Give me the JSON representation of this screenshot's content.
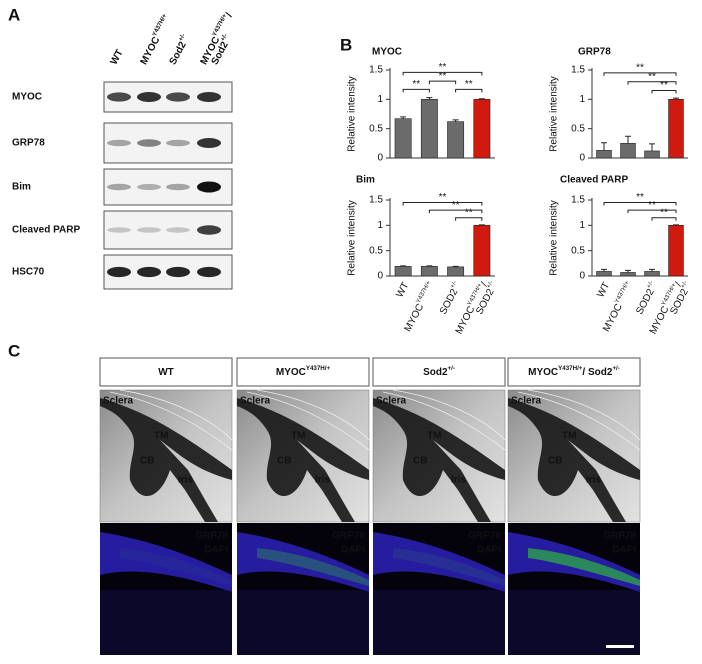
{
  "panel_labels": [
    "A",
    "B",
    "C"
  ],
  "blot": {
    "columns": [
      [
        [
          "WT"
        ]
      ],
      [
        [
          "MYOC",
          "Y437H/+"
        ]
      ],
      [
        [
          "Sod2",
          "+/-"
        ]
      ],
      [
        [
          "MYOC",
          "Y437H/+",
          "/"
        ],
        [
          "Sod2",
          "+/-"
        ]
      ]
    ],
    "rows": [
      "MYOC",
      "GRP78",
      "Bim",
      "Cleaved PARP",
      "HSC70"
    ]
  },
  "chart_data": [
    {
      "type": "bar",
      "title": "MYOC",
      "y_label": "Relative intensity",
      "categories": [
        null,
        null,
        null,
        null
      ],
      "values": [
        0.67,
        1.0,
        0.62,
        1.0
      ],
      "errors": [
        0.03,
        0.03,
        0.03,
        0.01
      ],
      "colors": [
        "#6b6b6b",
        "#6b6b6b",
        "#6b6b6b",
        "#d0190f"
      ],
      "annotations": [
        "**",
        "**",
        "**",
        "**"
      ],
      "ylim": [
        0,
        1.5
      ],
      "yticks": [
        0,
        0.5,
        1,
        1.5
      ]
    },
    {
      "type": "bar",
      "title": "GRP78",
      "y_label": "Relative intensity",
      "categories": [
        null,
        null,
        null,
        null
      ],
      "values": [
        0.13,
        0.25,
        0.12,
        1.0
      ],
      "errors": [
        0.13,
        0.12,
        0.12,
        0.02
      ],
      "colors": [
        "#6b6b6b",
        "#6b6b6b",
        "#6b6b6b",
        "#d0190f"
      ],
      "annotations": [
        "**",
        "**",
        "**"
      ],
      "ylim": [
        0,
        1.5
      ],
      "yticks": [
        0,
        0.5,
        1,
        1.5
      ]
    },
    {
      "type": "bar",
      "title": "Bim",
      "y_label": "Relative intensity",
      "categories": [
        [
          [
            "WT"
          ]
        ],
        [
          [
            "MYOC",
            "Y437H/+"
          ]
        ],
        [
          [
            "SOD2",
            "+/-"
          ]
        ],
        [
          [
            "MYOC",
            "Y437H/+",
            "/"
          ],
          [
            "SOD2",
            "+/-"
          ]
        ]
      ],
      "values": [
        0.19,
        0.19,
        0.18,
        1.0
      ],
      "errors": [
        0.01,
        0.01,
        0.01,
        0.01
      ],
      "colors": [
        "#6b6b6b",
        "#6b6b6b",
        "#6b6b6b",
        "#d0190f"
      ],
      "annotations": [
        "**",
        "**",
        "**"
      ],
      "ylim": [
        0,
        1.5
      ],
      "yticks": [
        0,
        0.5,
        1,
        1.5
      ]
    },
    {
      "type": "bar",
      "title": "Cleaved PARP",
      "y_label": "Relative intensity",
      "categories": [
        [
          [
            "WT"
          ]
        ],
        [
          [
            "MYOC",
            "Y437H/+"
          ]
        ],
        [
          [
            "SOD2",
            "+/-"
          ]
        ],
        [
          [
            "MYOC",
            "Y437H/+",
            "/"
          ],
          [
            "SOD2",
            "+/-"
          ]
        ]
      ],
      "values": [
        0.09,
        0.07,
        0.09,
        1.0
      ],
      "errors": [
        0.04,
        0.04,
        0.04,
        0.01
      ],
      "colors": [
        "#6b6b6b",
        "#6b6b6b",
        "#6b6b6b",
        "#d0190f"
      ],
      "annotations": [
        "**",
        "**",
        "**"
      ],
      "ylim": [
        0,
        1.5
      ],
      "yticks": [
        0,
        0.5,
        1,
        1.5
      ]
    }
  ],
  "imaging": {
    "columns": [
      [
        [
          "WT"
        ]
      ],
      [
        [
          "MYOC",
          "Y437H/+"
        ]
      ],
      [
        [
          "Sod2",
          "+/-"
        ]
      ],
      [
        [
          "MYOC",
          "Y437H/+",
          "/ Sod2",
          "+/-"
        ]
      ]
    ],
    "brightfield_labels": [
      "Sclera",
      "TM",
      "CB",
      "Iris"
    ],
    "fluorescence_labels": [
      "GRP78",
      "DAPI"
    ]
  }
}
